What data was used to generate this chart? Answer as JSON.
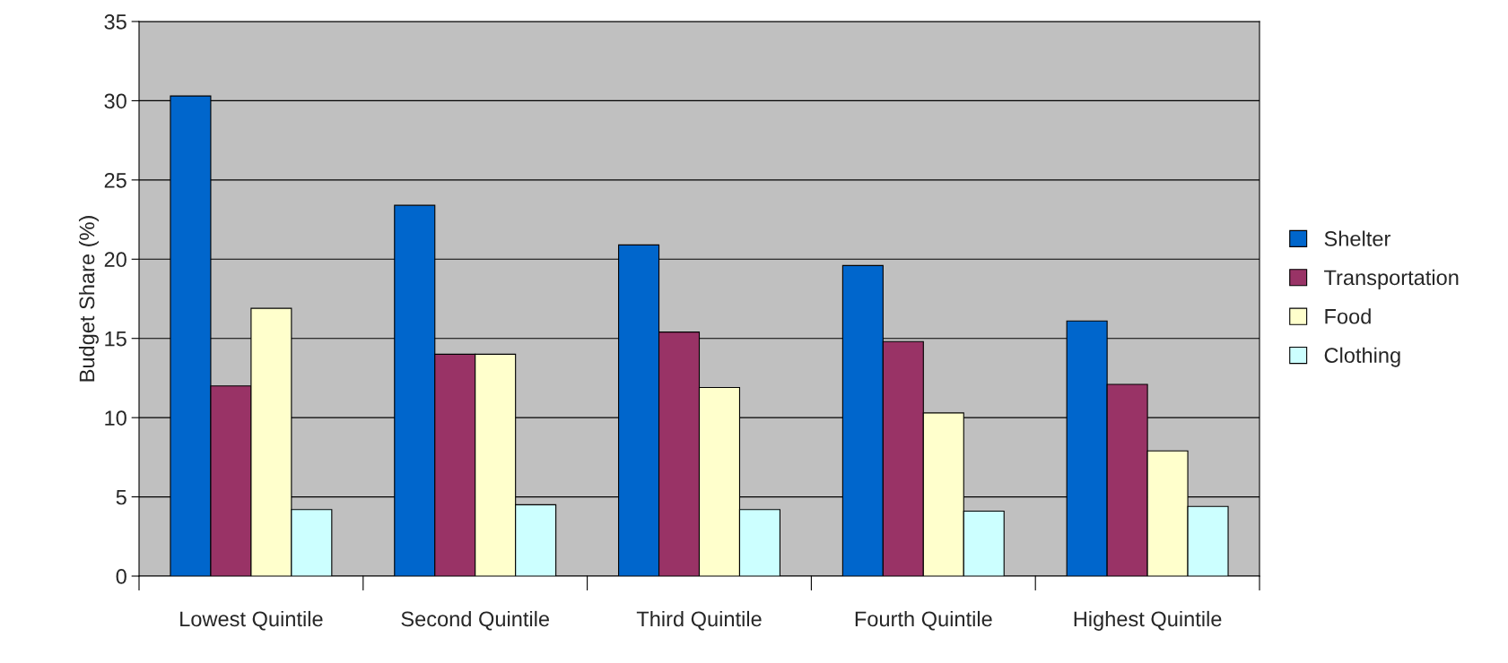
{
  "chart_data": {
    "type": "bar",
    "ylabel": "Budget Share (%)",
    "categories": [
      "Lowest Quintile",
      "Second Quintile",
      "Third Quintile",
      "Fourth Quintile",
      "Highest Quintile"
    ],
    "series": [
      {
        "name": "Shelter",
        "color": "#0066cc",
        "values": [
          30.3,
          23.4,
          20.9,
          19.6,
          16.1
        ]
      },
      {
        "name": "Transportation",
        "color": "#993366",
        "values": [
          12.0,
          14.0,
          15.4,
          14.8,
          12.1
        ]
      },
      {
        "name": "Food",
        "color": "#ffffcc",
        "values": [
          16.9,
          14.0,
          11.9,
          10.3,
          7.9
        ]
      },
      {
        "name": "Clothing",
        "color": "#ccffff",
        "values": [
          4.2,
          4.5,
          4.2,
          4.1,
          4.4
        ]
      }
    ],
    "ylim": [
      0,
      35
    ],
    "yticks": [
      0,
      5,
      10,
      15,
      20,
      25,
      30,
      35
    ],
    "grid": "y",
    "legend": "right"
  }
}
